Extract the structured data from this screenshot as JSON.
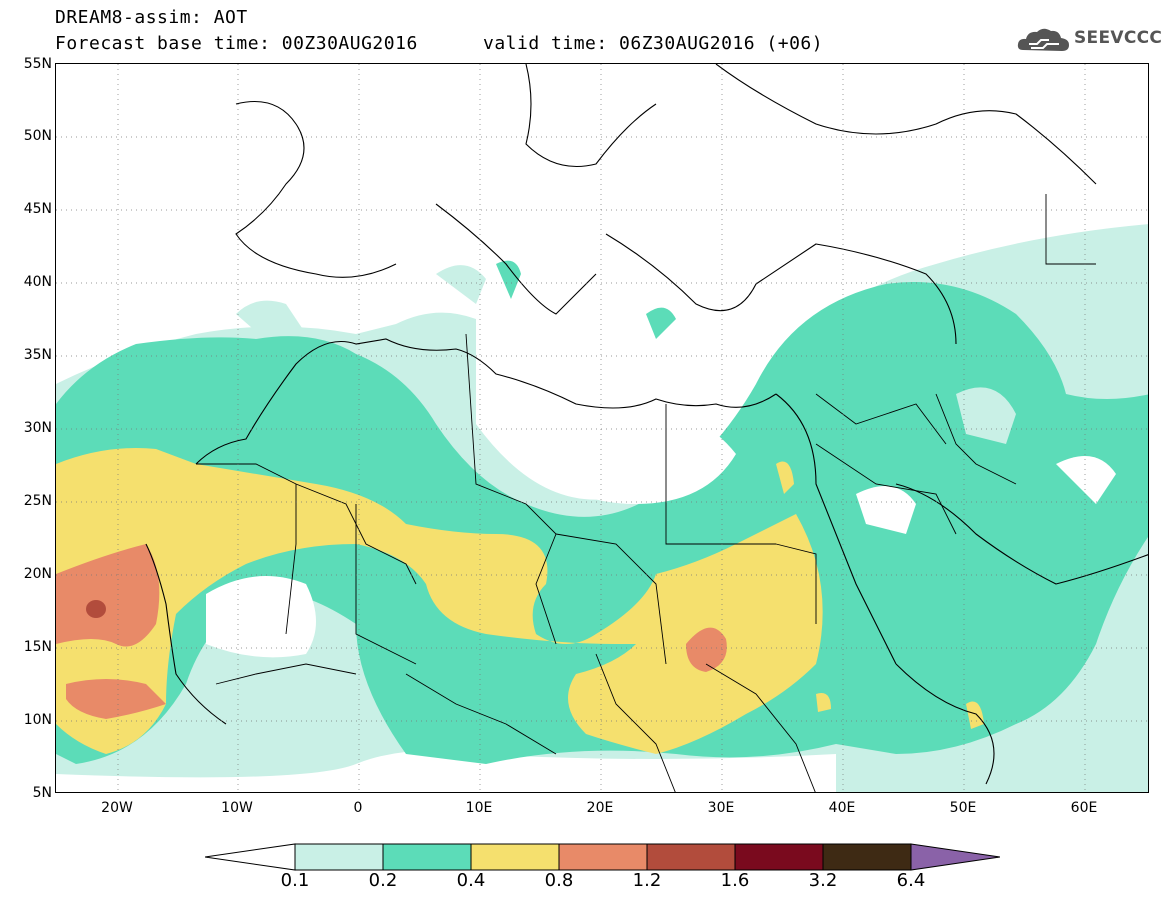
{
  "header": {
    "title": "DREAM8-assim: AOT",
    "base_time": "Forecast base time: 00Z30AUG2016",
    "valid_time": "valid time: 06Z30AUG2016 (+06)"
  },
  "logo": {
    "text": "SEEVCCC",
    "icon": "cloud-icon"
  },
  "axes": {
    "lat_labels": [
      "55N",
      "50N",
      "45N",
      "40N",
      "35N",
      "30N",
      "25N",
      "20N",
      "15N",
      "10N",
      "5N"
    ],
    "lon_labels": [
      "20W",
      "10W",
      "0",
      "10E",
      "20E",
      "30E",
      "40E",
      "50E",
      "60E"
    ]
  },
  "colorbar": {
    "labels": [
      "0.1",
      "0.2",
      "0.4",
      "0.8",
      "1.2",
      "1.6",
      "3.2",
      "6.4"
    ],
    "colors": [
      "#ffffff",
      "#c9f0e6",
      "#5cdcb8",
      "#f5e06e",
      "#e88a68",
      "#b24c3c",
      "#7a0a1e",
      "#3e2a14",
      "#8a62a8"
    ]
  },
  "map_colors": {
    "land_border": "#000000",
    "grid": "#777777"
  }
}
